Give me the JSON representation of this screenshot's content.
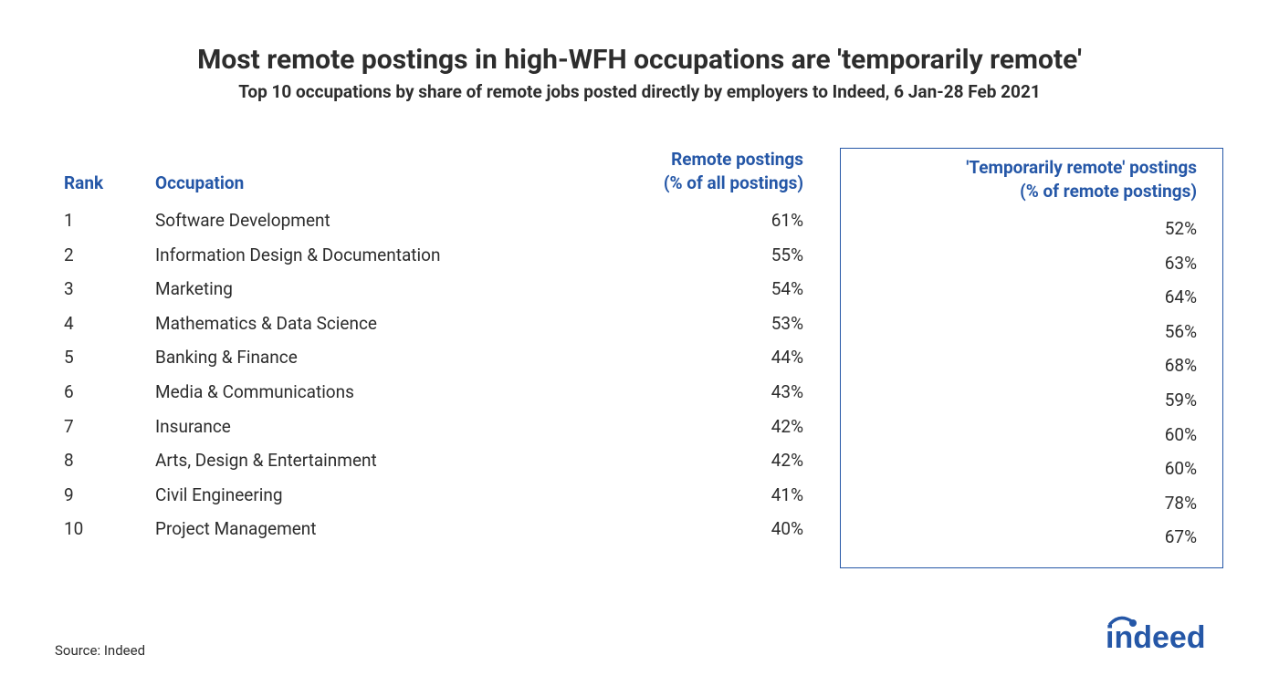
{
  "title": "Most remote postings in high-WFH occupations are 'temporarily remote'",
  "subtitle": "Top 10 occupations by share of remote jobs posted directly by employers to Indeed, 6 Jan-28 Feb 2021",
  "headers": {
    "rank": "Rank",
    "occupation": "Occupation",
    "remote_line1": "Remote postings",
    "remote_line2": "(% of all postings)",
    "temp_line1": "'Temporarily remote' postings",
    "temp_line2": "(% of remote postings)"
  },
  "rows": [
    {
      "rank": "1",
      "occupation": "Software Development",
      "remote": "61%",
      "temp": "52%"
    },
    {
      "rank": "2",
      "occupation": "Information Design & Documentation",
      "remote": "55%",
      "temp": "63%"
    },
    {
      "rank": "3",
      "occupation": "Marketing",
      "remote": "54%",
      "temp": "64%"
    },
    {
      "rank": "4",
      "occupation": "Mathematics & Data Science",
      "remote": "53%",
      "temp": "56%"
    },
    {
      "rank": "5",
      "occupation": "Banking & Finance",
      "remote": "44%",
      "temp": "68%"
    },
    {
      "rank": "6",
      "occupation": "Media & Communications",
      "remote": "43%",
      "temp": "59%"
    },
    {
      "rank": "7",
      "occupation": "Insurance",
      "remote": "42%",
      "temp": "60%"
    },
    {
      "rank": "8",
      "occupation": "Arts, Design & Entertainment",
      "remote": "42%",
      "temp": "60%"
    },
    {
      "rank": "9",
      "occupation": "Civil Engineering",
      "remote": "41%",
      "temp": "78%"
    },
    {
      "rank": "10",
      "occupation": "Project Management",
      "remote": "40%",
      "temp": "67%"
    }
  ],
  "source": "Source: Indeed",
  "logo_text": "indeed",
  "styling": {
    "header_color": "#2557a7",
    "text_color": "#2d2d2d",
    "background_color": "#ffffff",
    "box_border_color": "#2557a7",
    "title_fontsize": 30,
    "subtitle_fontsize": 19,
    "body_fontsize": 19,
    "source_fontsize": 15,
    "logo_color": "#2557a7",
    "font_family": "sans-serif",
    "highlight_box": true,
    "highlight_box_columns": [
      "temp"
    ],
    "type": "table"
  }
}
